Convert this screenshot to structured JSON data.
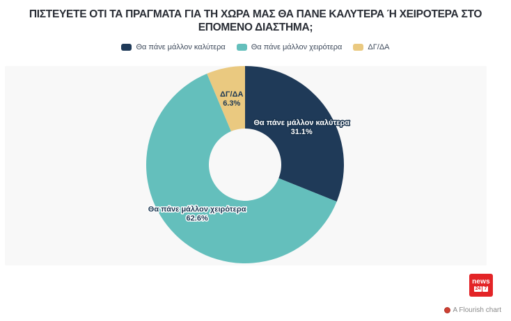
{
  "title": "ΠΙΣΤΕΥΕΤΕ ΟΤΙ ΤΑ ΠΡΑΓΜΑΤΑ ΓΙΑ ΤΗ ΧΩΡΑ ΜΑΣ ΘΑ ΠΑΝΕ ΚΑΛΥΤΕΡΑ Ή ΧΕΙΡΟΤΕΡΑ ΣΤΟ ΕΠΟΜΕΝΟ ΔΙΑΣΤΗΜΑ;",
  "legend": [
    {
      "label": "Θα πάνε μάλλον καλύτερα",
      "color": "#1f3a58"
    },
    {
      "label": "Θα πάνε μάλλον χειρότερα",
      "color": "#64bfbc"
    },
    {
      "label": "ΔΓ/ΔΑ",
      "color": "#eac980"
    }
  ],
  "chart_data": {
    "type": "pie",
    "donut": true,
    "title": "ΠΙΣΤΕΥΕΤΕ ΟΤΙ ΤΑ ΠΡΑΓΜΑΤΑ ΓΙΑ ΤΗ ΧΩΡΑ ΜΑΣ ΘΑ ΠΑΝΕ ΚΑΛΥΤΕΡΑ Ή ΧΕΙΡΟΤΕΡΑ ΣΤΟ ΕΠΟΜΕΝΟ ΔΙΑΣΤΗΜΑ;",
    "categories": [
      "Θα πάνε μάλλον καλύτερα",
      "Θα πάνε μάλλον χειρότερα",
      "ΔΓ/ΔΑ"
    ],
    "values": [
      31.1,
      62.6,
      6.3
    ],
    "pct_labels": [
      "31.1%",
      "62.6%",
      "6.3%"
    ],
    "unit": "%",
    "colors": [
      "#1f3a58",
      "#64bfbc",
      "#eac980"
    ],
    "label_styles": [
      {
        "fill": "#ffffff",
        "outline": "#16304b"
      },
      {
        "fill": "#1d3853",
        "outline": "#ffffff"
      },
      {
        "fill": "#1d3853",
        "outline": "none"
      }
    ],
    "start_angle_deg": 0,
    "direction": "clockwise",
    "legend_position": "top",
    "background": "#f8f8f8"
  },
  "footer": {
    "logo": {
      "line1": "news",
      "box1": "24",
      "box2": "7"
    },
    "attribution": "A Flourish chart"
  }
}
